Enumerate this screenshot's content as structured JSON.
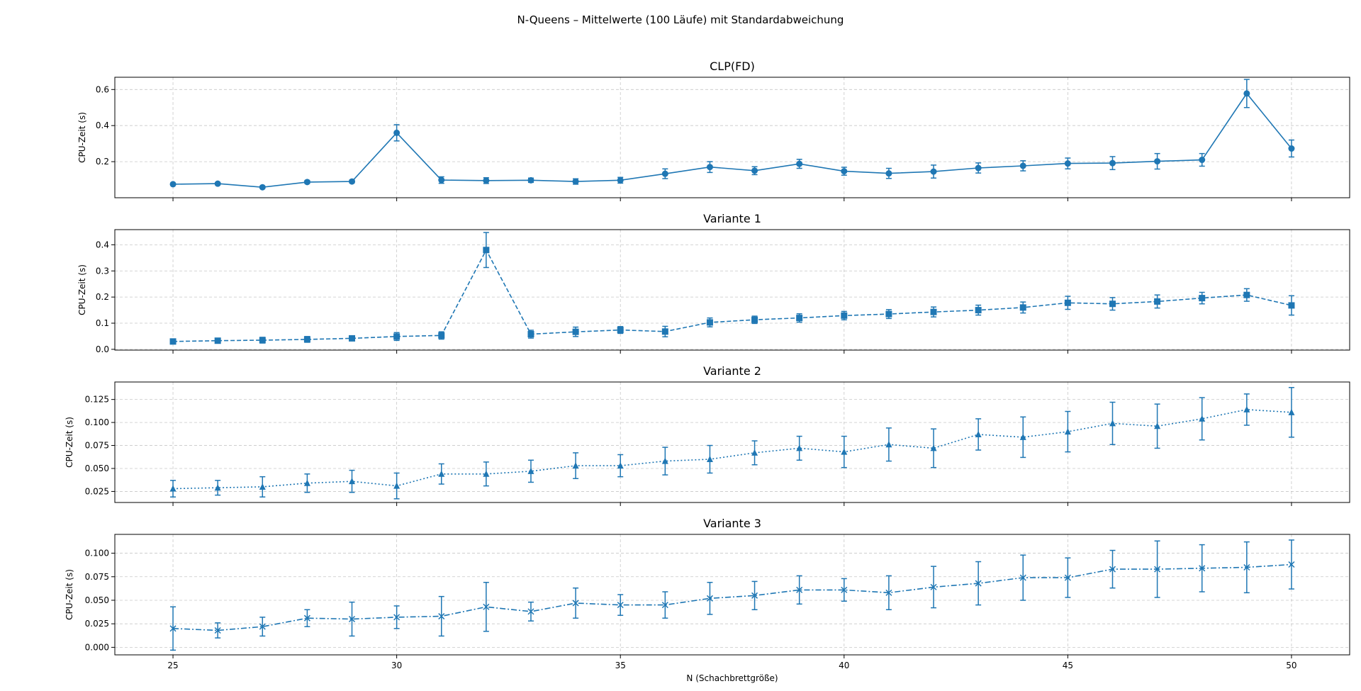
{
  "suptitle": "N-Queens – Mittelwerte (100 Läufe) mit Standardabweichung",
  "chart_data": {
    "type": "line",
    "sharex": true,
    "xlabel": "N (Schachbrettgröße)",
    "x": [
      25,
      26,
      27,
      28,
      29,
      30,
      31,
      32,
      33,
      34,
      35,
      36,
      37,
      38,
      39,
      40,
      41,
      42,
      43,
      44,
      45,
      46,
      47,
      48,
      49,
      50
    ],
    "xlim": [
      23.7,
      51.3
    ],
    "xticks": [
      25,
      30,
      35,
      40,
      45,
      50
    ],
    "grid": true,
    "color": "#1f77b4",
    "panels": [
      {
        "title": "CLP(FD)",
        "ylabel": "CPU-Zeit (s)",
        "marker": "circle",
        "linestyle": "solid",
        "ylim": [
          0.0,
          0.668
        ],
        "yticks": [
          0.2,
          0.4,
          0.6
        ],
        "values": [
          0.075,
          0.078,
          0.058,
          0.087,
          0.09,
          0.36,
          0.098,
          0.095,
          0.097,
          0.09,
          0.097,
          0.133,
          0.17,
          0.15,
          0.188,
          0.147,
          0.135,
          0.145,
          0.165,
          0.177,
          0.19,
          0.192,
          0.202,
          0.21,
          0.578,
          0.273
        ],
        "errors": [
          0.006,
          0.006,
          0.006,
          0.008,
          0.008,
          0.045,
          0.018,
          0.016,
          0.012,
          0.015,
          0.016,
          0.027,
          0.03,
          0.022,
          0.025,
          0.022,
          0.028,
          0.036,
          0.028,
          0.028,
          0.03,
          0.036,
          0.043,
          0.035,
          0.078,
          0.047
        ]
      },
      {
        "title": "Variante 1",
        "ylabel": "CPU-Zeit (s)",
        "marker": "square",
        "linestyle": "dashed",
        "ylim": [
          -0.003,
          0.458
        ],
        "yticks": [
          0.0,
          0.1,
          0.2,
          0.3,
          0.4
        ],
        "values": [
          0.03,
          0.033,
          0.035,
          0.038,
          0.042,
          0.049,
          0.053,
          0.38,
          0.058,
          0.067,
          0.074,
          0.068,
          0.103,
          0.113,
          0.12,
          0.129,
          0.135,
          0.143,
          0.15,
          0.16,
          0.178,
          0.174,
          0.183,
          0.196,
          0.208,
          0.168
        ],
        "errors": [
          0.006,
          0.007,
          0.011,
          0.011,
          0.009,
          0.015,
          0.014,
          0.067,
          0.015,
          0.018,
          0.013,
          0.02,
          0.017,
          0.014,
          0.016,
          0.016,
          0.017,
          0.019,
          0.019,
          0.021,
          0.025,
          0.024,
          0.025,
          0.022,
          0.024,
          0.037
        ]
      },
      {
        "title": "Variante 2",
        "ylabel": "CPU-Zeit (s)",
        "marker": "triangle",
        "linestyle": "dotted",
        "ylim": [
          0.013,
          0.144
        ],
        "yticks": [
          0.025,
          0.05,
          0.075,
          0.1,
          0.125
        ],
        "values": [
          0.028,
          0.029,
          0.03,
          0.034,
          0.036,
          0.031,
          0.044,
          0.044,
          0.047,
          0.053,
          0.053,
          0.058,
          0.06,
          0.067,
          0.072,
          0.068,
          0.076,
          0.072,
          0.087,
          0.084,
          0.09,
          0.099,
          0.096,
          0.104,
          0.114,
          0.111
        ],
        "errors": [
          0.009,
          0.008,
          0.011,
          0.01,
          0.012,
          0.014,
          0.011,
          0.013,
          0.012,
          0.014,
          0.012,
          0.015,
          0.015,
          0.013,
          0.013,
          0.017,
          0.018,
          0.021,
          0.017,
          0.022,
          0.022,
          0.023,
          0.024,
          0.023,
          0.017,
          0.027
        ]
      },
      {
        "title": "Variante 3",
        "ylabel": "CPU-Zeit (s)",
        "marker": "x",
        "linestyle": "dashdot",
        "ylim": [
          -0.008,
          0.12
        ],
        "yticks": [
          0.0,
          0.025,
          0.05,
          0.075,
          0.1
        ],
        "values": [
          0.02,
          0.018,
          0.022,
          0.031,
          0.03,
          0.032,
          0.033,
          0.043,
          0.038,
          0.047,
          0.045,
          0.045,
          0.052,
          0.055,
          0.061,
          0.061,
          0.058,
          0.064,
          0.068,
          0.074,
          0.074,
          0.083,
          0.083,
          0.084,
          0.085,
          0.088
        ],
        "errors": [
          0.023,
          0.008,
          0.01,
          0.009,
          0.018,
          0.012,
          0.021,
          0.026,
          0.01,
          0.016,
          0.011,
          0.014,
          0.017,
          0.015,
          0.015,
          0.012,
          0.018,
          0.022,
          0.023,
          0.024,
          0.021,
          0.02,
          0.03,
          0.025,
          0.027,
          0.026
        ]
      }
    ]
  }
}
